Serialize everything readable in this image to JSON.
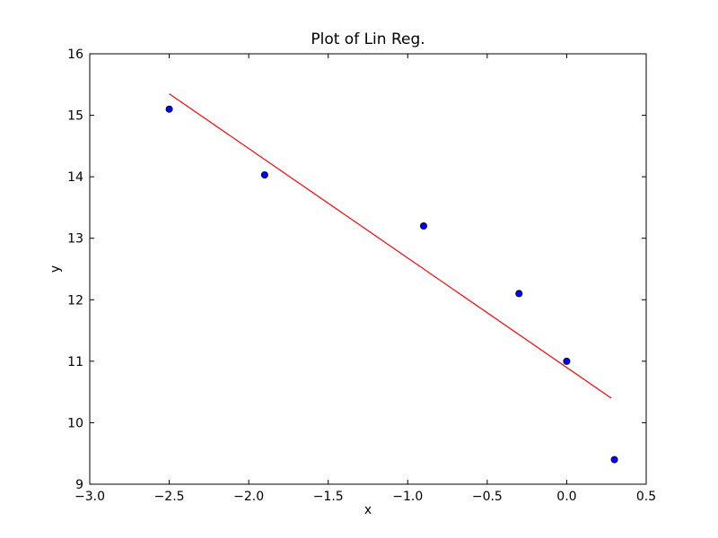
{
  "chart_data": {
    "type": "scatter",
    "title": "Plot of Lin Reg.",
    "xlabel": "x",
    "ylabel": "y",
    "xlim": [
      -3.0,
      0.5
    ],
    "ylim": [
      9,
      16
    ],
    "grid": false,
    "x_ticks": [
      -3.0,
      -2.5,
      -2.0,
      -1.5,
      -1.0,
      -0.5,
      0.0,
      0.5
    ],
    "x_tick_labels": [
      "−3.0",
      "−2.5",
      "−2.0",
      "−1.5",
      "−1.0",
      "−0.5",
      "0.0",
      "0.5"
    ],
    "y_ticks": [
      9,
      10,
      11,
      12,
      13,
      14,
      15,
      16
    ],
    "y_tick_labels": [
      "9",
      "10",
      "11",
      "12",
      "13",
      "14",
      "15",
      "16"
    ],
    "series": [
      {
        "type": "scatter",
        "color": "#0000ff",
        "x": [
          -2.5,
          -1.9,
          -0.9,
          -0.3,
          0.0,
          0.3
        ],
        "y": [
          15.1,
          14.03,
          13.2,
          12.1,
          11.0,
          9.4
        ]
      },
      {
        "type": "line",
        "color": "#ff0000",
        "x": [
          -2.5,
          0.28
        ],
        "y": [
          15.35,
          10.4
        ]
      }
    ]
  }
}
